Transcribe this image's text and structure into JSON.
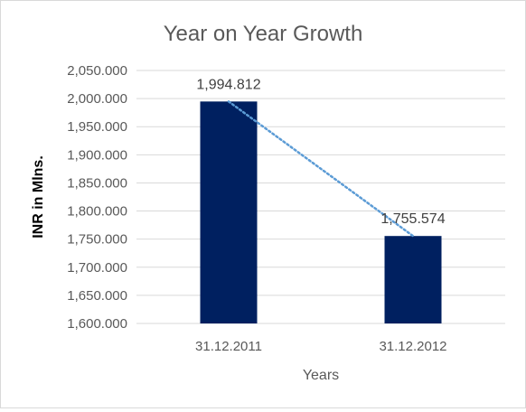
{
  "chart_data": {
    "type": "bar",
    "title": "Year on Year Growth",
    "xlabel": "Years",
    "ylabel": "INR in Mlns.",
    "categories": [
      "31.12.2011",
      "31.12.2012"
    ],
    "values": [
      1994.812,
      1755.574
    ],
    "data_labels": [
      "1,994.812",
      "1,755.574"
    ],
    "ylim": [
      1600,
      2050
    ],
    "yticks": [
      1600,
      1650,
      1700,
      1750,
      1800,
      1850,
      1900,
      1950,
      2000,
      2050
    ],
    "ytick_labels": [
      "1,600.000",
      "1,650.000",
      "1,700.000",
      "1,750.000",
      "1,800.000",
      "1,850.000",
      "1,900.000",
      "1,950.000",
      "2,000.000",
      "2,050.000"
    ],
    "trendline": "linear, dotted",
    "grid": true,
    "legend": "none",
    "colors": {
      "bar": "#002060",
      "trendline": "#5b9bd5"
    }
  }
}
